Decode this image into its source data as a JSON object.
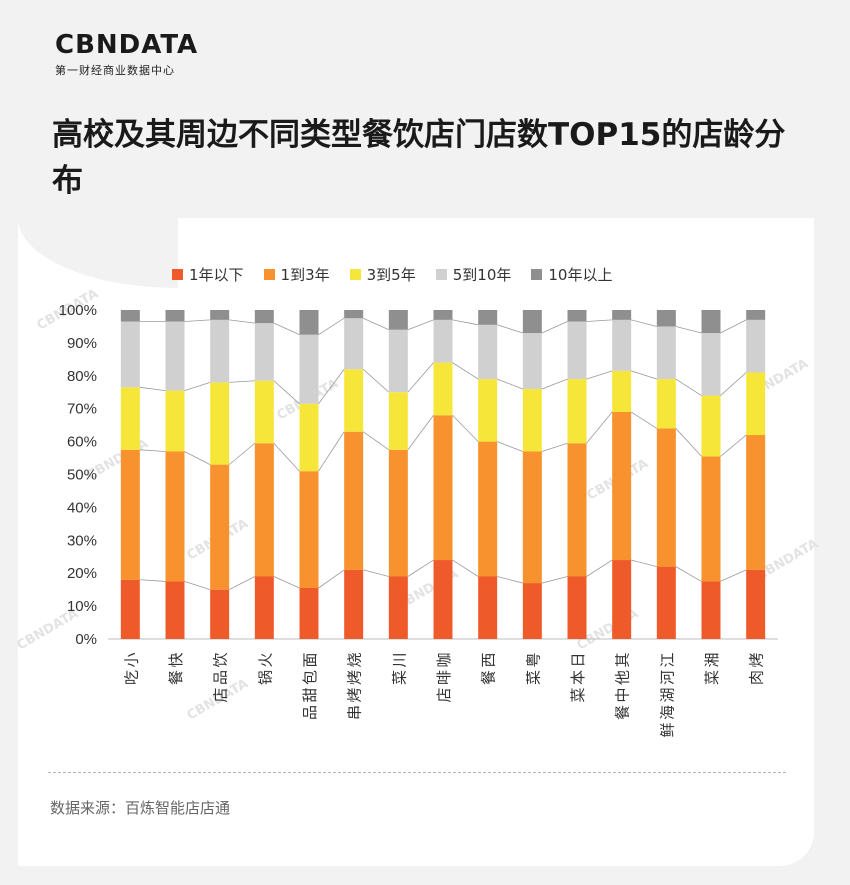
{
  "brand": {
    "logo_text": "CBNDATA",
    "logo_subtitle": "第一财经商业数据中心"
  },
  "page_title": "高校及其周边不同类型餐饮店门店数TOP15的店龄分布",
  "source_text": "数据来源：百炼智能店店通",
  "watermark_text": "CBNDATA",
  "chart_data": {
    "type": "bar",
    "stacked": true,
    "title": "",
    "xlabel": "",
    "ylabel": "",
    "ylim": [
      0,
      100
    ],
    "yticks": [
      "0%",
      "10%",
      "20%",
      "30%",
      "40%",
      "50%",
      "60%",
      "70%",
      "80%",
      "90%",
      "100%"
    ],
    "grid": false,
    "legend_position": "top",
    "categories": [
      "小吃",
      "快餐",
      "饮品店",
      "火锅",
      "面包甜品",
      "烧烤烤串",
      "川菜",
      "咖啡店",
      "西餐",
      "粤菜",
      "日本菜",
      "其他中餐",
      "江河湖海鲜",
      "湘菜",
      "烤肉"
    ],
    "series": [
      {
        "name": "1年以下",
        "color": "#ef5a2b",
        "values": [
          18,
          17.5,
          15,
          19,
          15.5,
          21,
          19,
          24,
          19,
          17,
          19,
          24,
          22,
          17.5,
          21
        ]
      },
      {
        "name": "1到3年",
        "color": "#f7922f",
        "values": [
          39.5,
          39.5,
          38,
          40.5,
          35.5,
          42,
          38.5,
          44,
          41,
          40,
          40.5,
          45,
          42,
          38,
          41
        ]
      },
      {
        "name": "3到5年",
        "color": "#f6e63a",
        "values": [
          19,
          18.5,
          25,
          19,
          20.5,
          19,
          17.5,
          16,
          19,
          19,
          19.5,
          12.5,
          15,
          18.5,
          19
        ]
      },
      {
        "name": "5到10年",
        "color": "#d0d0d0",
        "values": [
          20,
          21,
          19,
          17.5,
          21,
          15.5,
          19,
          13,
          16.5,
          17,
          17.5,
          15.5,
          16,
          19,
          16
        ]
      },
      {
        "name": "10年以上",
        "color": "#8f8f8f",
        "values": [
          3.5,
          3.5,
          3,
          4,
          7.5,
          2.5,
          6,
          3,
          4.5,
          7,
          3.5,
          3,
          5,
          7,
          3
        ]
      }
    ]
  }
}
